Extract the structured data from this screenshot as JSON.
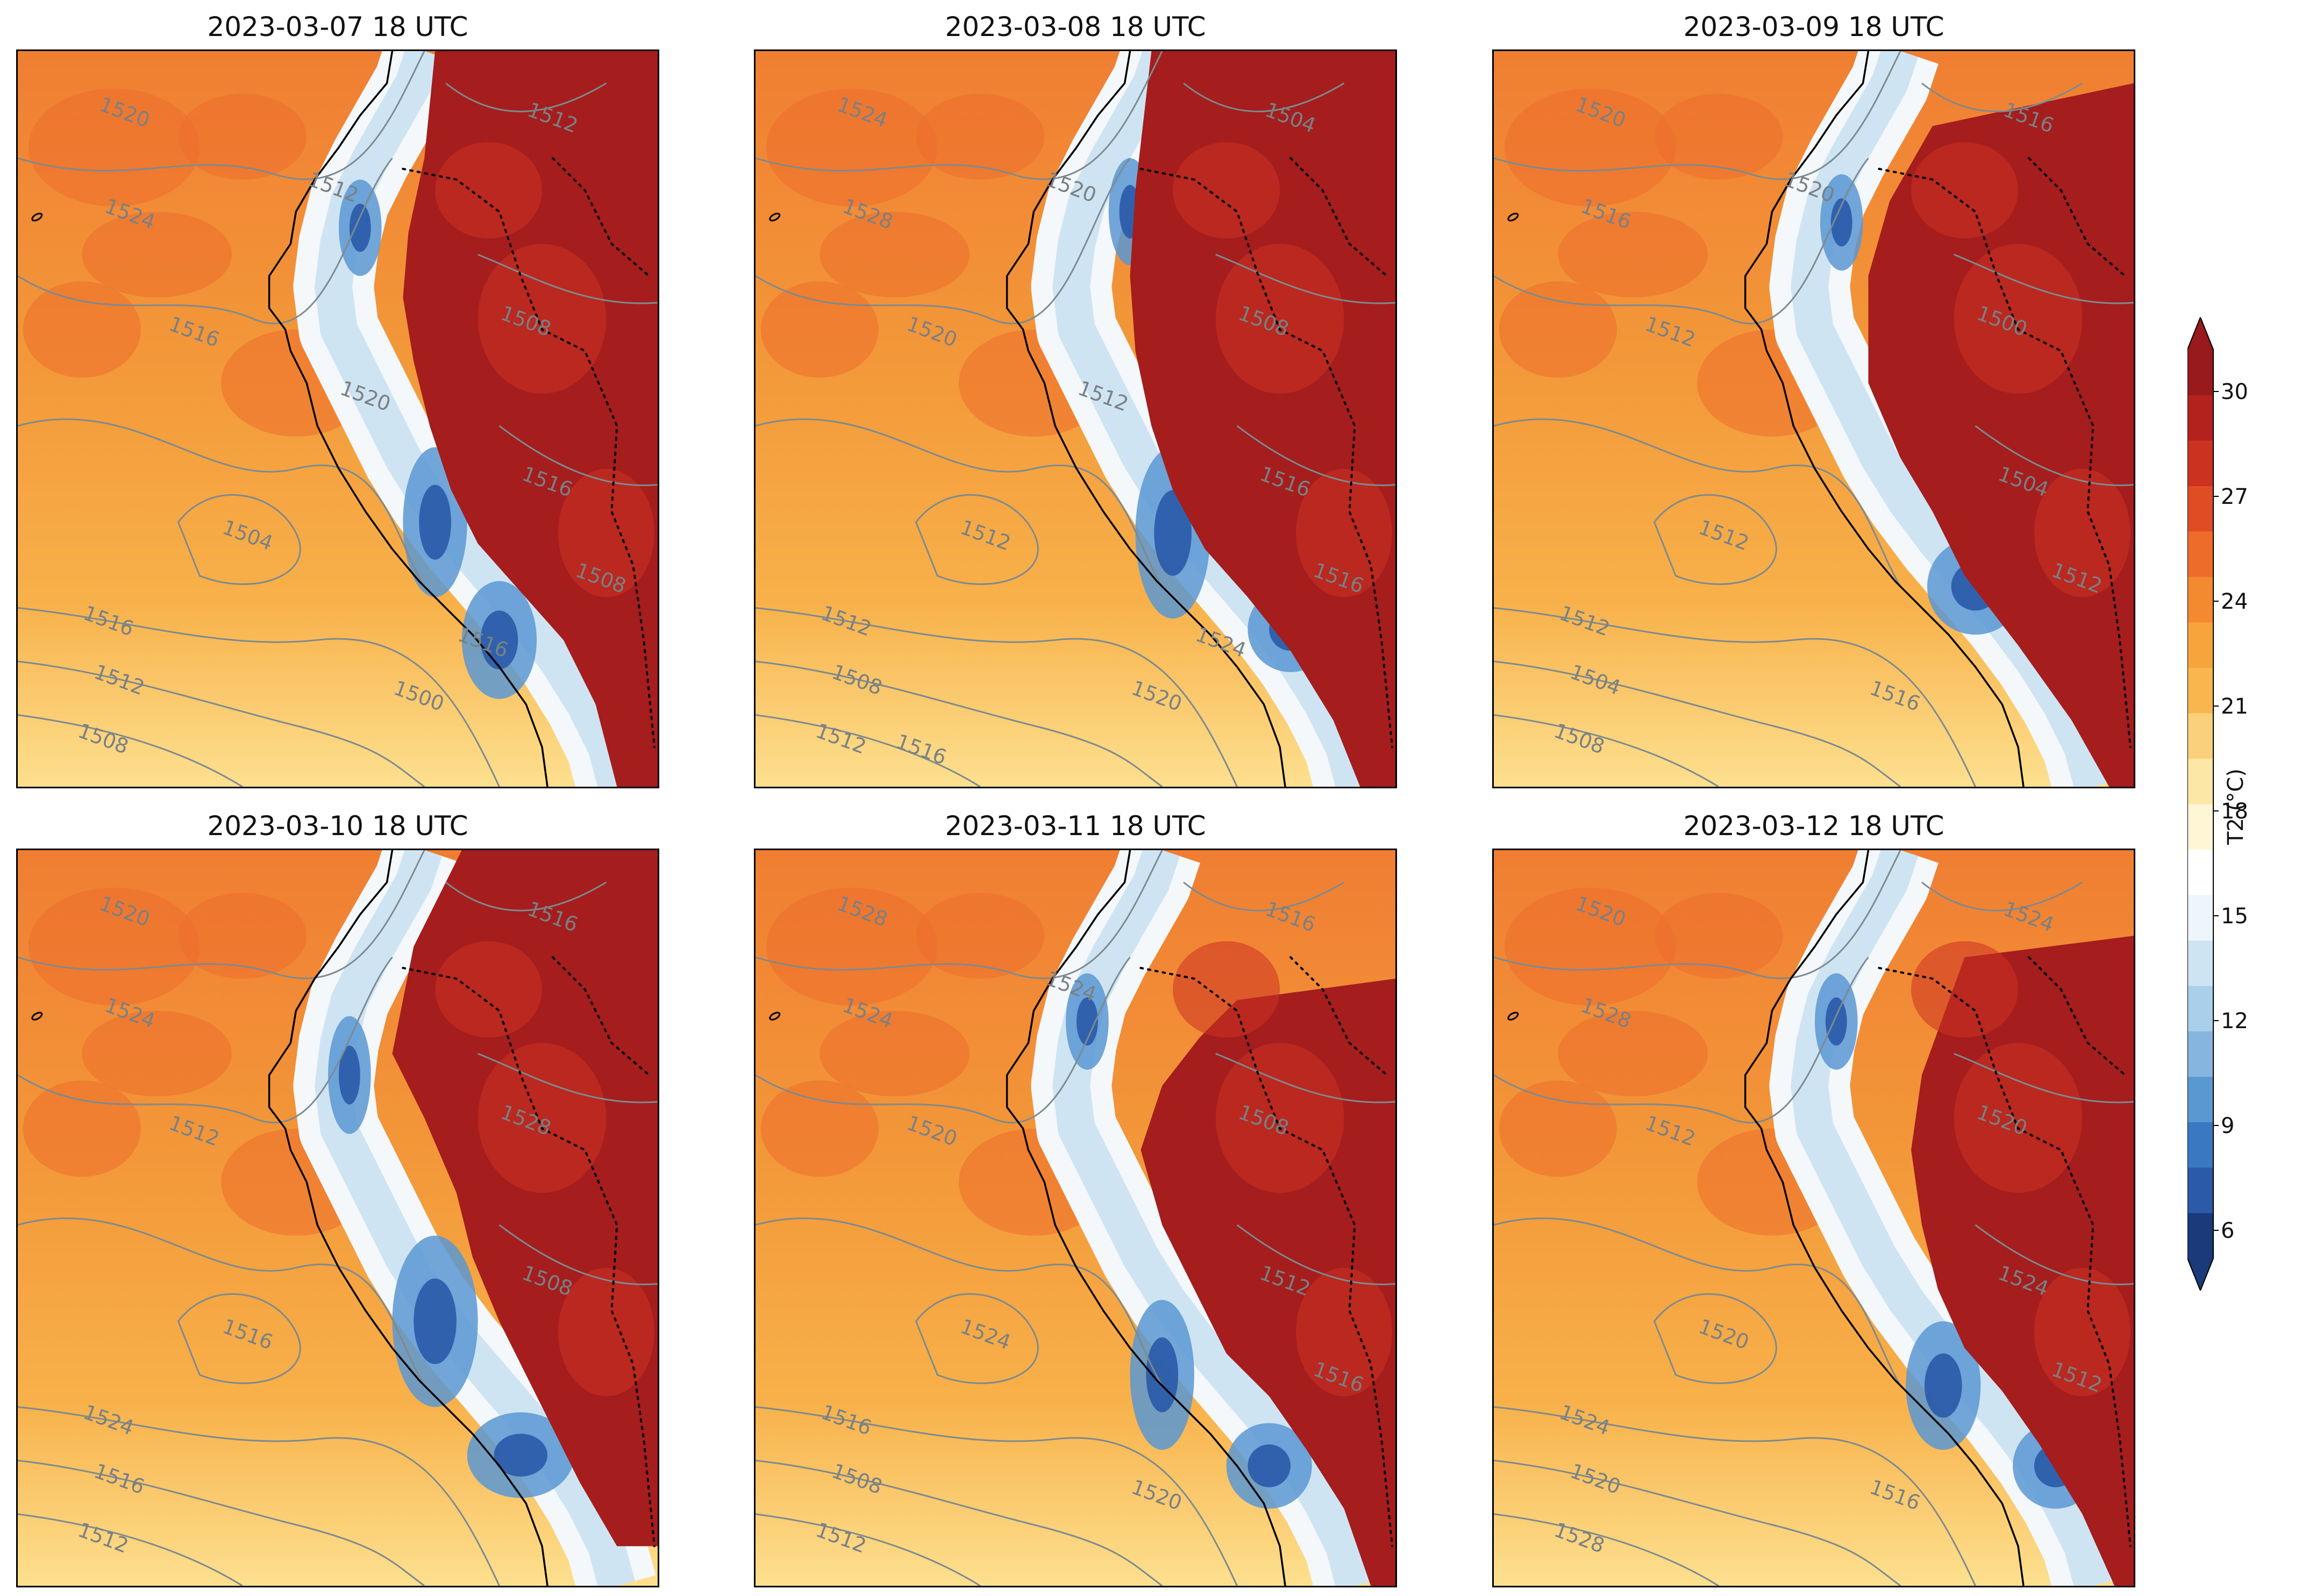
{
  "figure": {
    "panels": [
      {
        "title": "2023-03-07 18 UTC",
        "contours": [
          "1520",
          "1524",
          "1516",
          "1516",
          "1512",
          "1508",
          "1512",
          "1508",
          "1516",
          "1504",
          "1500",
          "1508",
          "1512",
          "1516",
          "1520"
        ]
      },
      {
        "title": "2023-03-08 18 UTC",
        "contours": [
          "1524",
          "1528",
          "1520",
          "1512",
          "1508",
          "1512",
          "1504",
          "1508",
          "1516",
          "1512",
          "1520",
          "1516",
          "1520",
          "1524",
          "1512",
          "1516"
        ]
      },
      {
        "title": "2023-03-09 18 UTC",
        "contours": [
          "1520",
          "1516",
          "1512",
          "1512",
          "1504",
          "1508",
          "1516",
          "1500",
          "1504",
          "1512",
          "1516",
          "1512",
          "1520"
        ]
      },
      {
        "title": "2023-03-10 18 UTC",
        "contours": [
          "1520",
          "1524",
          "1512",
          "1524",
          "1516",
          "1512",
          "1516",
          "1528",
          "1508",
          "1516"
        ]
      },
      {
        "title": "2023-03-11 18 UTC",
        "contours": [
          "1528",
          "1524",
          "1520",
          "1516",
          "1508",
          "1512",
          "1516",
          "1508",
          "1512",
          "1524",
          "1520",
          "1516",
          "1524"
        ]
      },
      {
        "title": "2023-03-12 18 UTC",
        "contours": [
          "1520",
          "1528",
          "1512",
          "1524",
          "1520",
          "1528",
          "1524",
          "1520",
          "1524",
          "1520",
          "1516",
          "1512"
        ]
      }
    ],
    "colorbar": {
      "label": "T2 (°C)",
      "ticks": [
        "30",
        "27",
        "24",
        "21",
        "18",
        "15",
        "12",
        "9",
        "6"
      ],
      "colors": [
        "#1b3a7a",
        "#2a5aa8",
        "#3a78c2",
        "#5a98d2",
        "#86b6e0",
        "#a9cfea",
        "#cfe4f3",
        "#eef6fb",
        "#ffffff",
        "#fff6d6",
        "#fde7a6",
        "#fbd07a",
        "#f9b64f",
        "#f7a43a",
        "#f48a30",
        "#ee6c2a",
        "#e04d24",
        "#cc3220",
        "#b4221e",
        "#981a1c"
      ]
    }
  }
}
